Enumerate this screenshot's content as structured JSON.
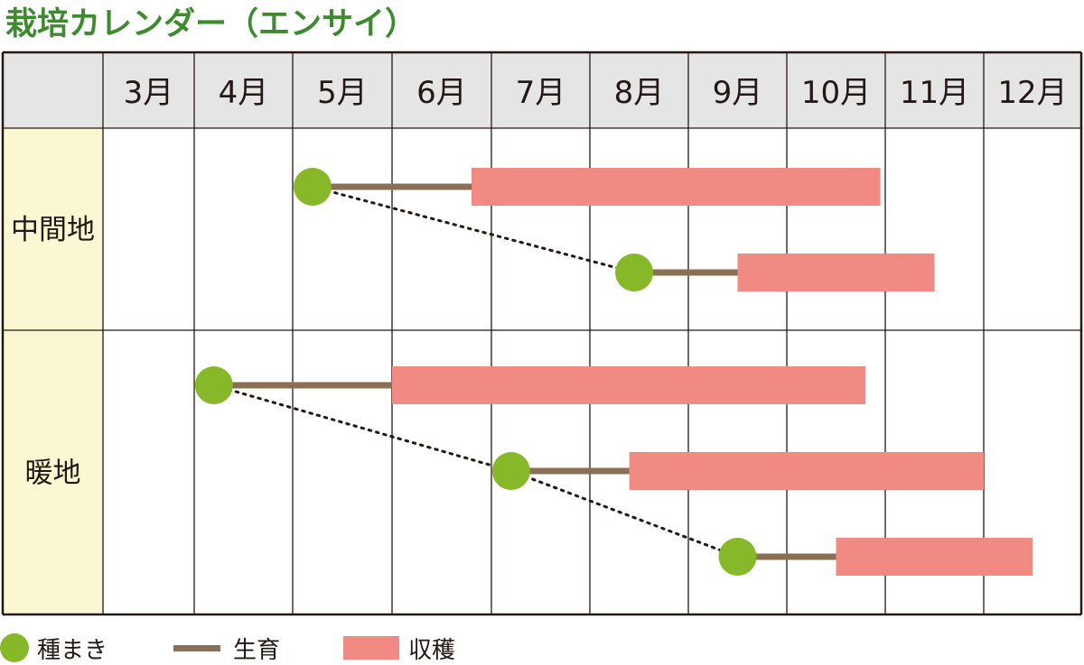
{
  "title": "栽培カレンダー（エンサイ）",
  "months": [
    "3月",
    "4月",
    "5月",
    "6月",
    "7月",
    "8月",
    "9月",
    "10月",
    "11月",
    "12月"
  ],
  "regions": [
    {
      "name": "中間地",
      "plans": [
        {
          "sow": 5.2,
          "growth_end": 6.8,
          "harvest_end": 10.95
        },
        {
          "sow": 8.45,
          "growth_end": 9.5,
          "harvest_end": 11.5
        }
      ]
    },
    {
      "name": "暖地",
      "plans": [
        {
          "sow": 4.2,
          "growth_end": 6.0,
          "harvest_end": 10.8
        },
        {
          "sow": 7.2,
          "growth_end": 8.4,
          "harvest_end": 12.0
        },
        {
          "sow": 9.5,
          "growth_end": 10.5,
          "harvest_end": 12.5
        }
      ]
    }
  ],
  "legend": {
    "sowing": "種まき",
    "growth": "生育",
    "harvest": "収穫"
  },
  "colors": {
    "title": "#3e8a2e",
    "sowing": "#86b82a",
    "growth": "#8b6f55",
    "harvest": "#f08a82",
    "header_bg": "#e5e5e5",
    "region_bg": "#faf7d2",
    "grid": "#231815"
  }
}
